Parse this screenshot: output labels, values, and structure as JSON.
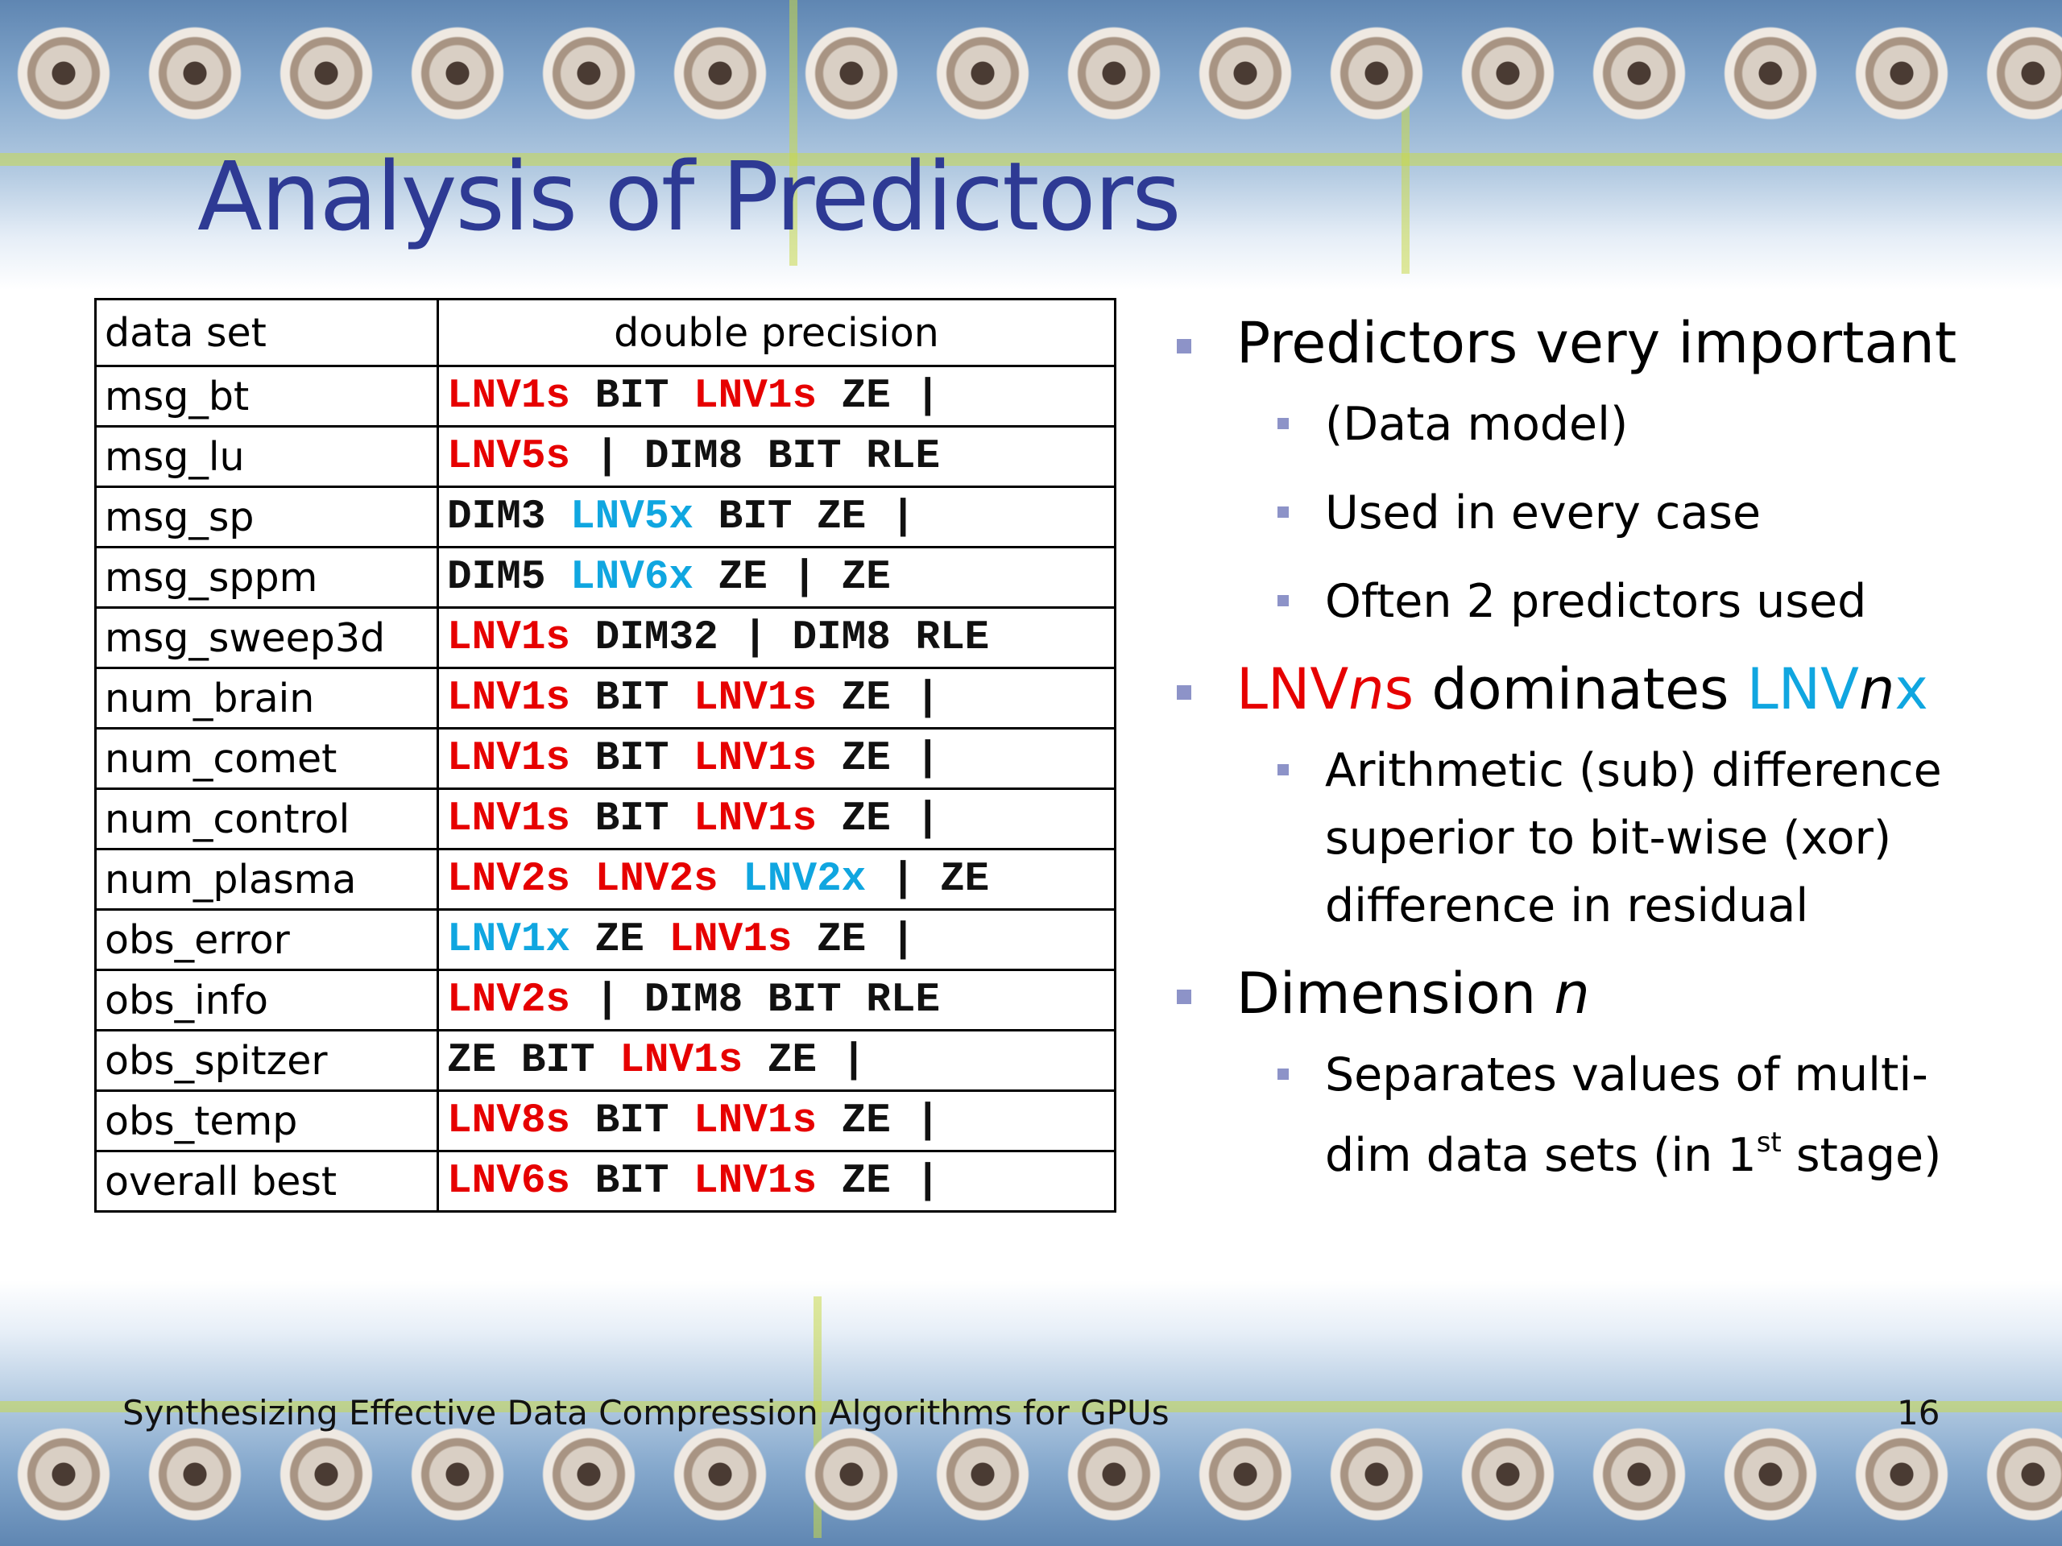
{
  "slide": {
    "title": "Analysis of Predictors",
    "footer": "Synthesizing Effective Data Compression Algorithms for GPUs",
    "page_number": "16"
  },
  "table": {
    "headers": [
      "data set",
      "double precision"
    ],
    "rows": [
      {
        "name": "msg_bt",
        "tokens": [
          {
            "t": "LNV1s",
            "c": "s"
          },
          {
            "t": "BIT",
            "c": "n"
          },
          {
            "t": "LNV1s",
            "c": "s"
          },
          {
            "t": "ZE",
            "c": "n"
          },
          {
            "t": "|",
            "c": "n"
          }
        ]
      },
      {
        "name": "msg_lu",
        "tokens": [
          {
            "t": "LNV5s",
            "c": "s"
          },
          {
            "t": "|",
            "c": "n"
          },
          {
            "t": "DIM8",
            "c": "n"
          },
          {
            "t": "BIT",
            "c": "n"
          },
          {
            "t": "RLE",
            "c": "n"
          }
        ]
      },
      {
        "name": "msg_sp",
        "tokens": [
          {
            "t": "DIM3",
            "c": "n"
          },
          {
            "t": "LNV5x",
            "c": "x"
          },
          {
            "t": "BIT",
            "c": "n"
          },
          {
            "t": "ZE",
            "c": "n"
          },
          {
            "t": "|",
            "c": "n"
          }
        ]
      },
      {
        "name": "msg_sppm",
        "tokens": [
          {
            "t": "DIM5",
            "c": "n"
          },
          {
            "t": "LNV6x",
            "c": "x"
          },
          {
            "t": "ZE",
            "c": "n"
          },
          {
            "t": "|",
            "c": "n"
          },
          {
            "t": "ZE",
            "c": "n"
          }
        ]
      },
      {
        "name": "msg_sweep3d",
        "tokens": [
          {
            "t": "LNV1s",
            "c": "s"
          },
          {
            "t": "DIM32",
            "c": "n"
          },
          {
            "t": "|",
            "c": "n"
          },
          {
            "t": "DIM8",
            "c": "n"
          },
          {
            "t": "RLE",
            "c": "n"
          }
        ]
      },
      {
        "name": "num_brain",
        "tokens": [
          {
            "t": "LNV1s",
            "c": "s"
          },
          {
            "t": "BIT",
            "c": "n"
          },
          {
            "t": "LNV1s",
            "c": "s"
          },
          {
            "t": "ZE",
            "c": "n"
          },
          {
            "t": "|",
            "c": "n"
          }
        ]
      },
      {
        "name": "num_comet",
        "tokens": [
          {
            "t": "LNV1s",
            "c": "s"
          },
          {
            "t": "BIT",
            "c": "n"
          },
          {
            "t": "LNV1s",
            "c": "s"
          },
          {
            "t": "ZE",
            "c": "n"
          },
          {
            "t": "|",
            "c": "n"
          }
        ]
      },
      {
        "name": "num_control",
        "tokens": [
          {
            "t": "LNV1s",
            "c": "s"
          },
          {
            "t": "BIT",
            "c": "n"
          },
          {
            "t": "LNV1s",
            "c": "s"
          },
          {
            "t": "ZE",
            "c": "n"
          },
          {
            "t": "|",
            "c": "n"
          }
        ]
      },
      {
        "name": "num_plasma",
        "tokens": [
          {
            "t": "LNV2s",
            "c": "s"
          },
          {
            "t": "LNV2s",
            "c": "s"
          },
          {
            "t": "LNV2x",
            "c": "x"
          },
          {
            "t": "|",
            "c": "n"
          },
          {
            "t": "ZE",
            "c": "n"
          }
        ]
      },
      {
        "name": "obs_error",
        "tokens": [
          {
            "t": "LNV1x",
            "c": "x"
          },
          {
            "t": "ZE",
            "c": "n"
          },
          {
            "t": "LNV1s",
            "c": "s"
          },
          {
            "t": "ZE",
            "c": "n"
          },
          {
            "t": "|",
            "c": "n"
          }
        ]
      },
      {
        "name": "obs_info",
        "tokens": [
          {
            "t": "LNV2s",
            "c": "s"
          },
          {
            "t": "|",
            "c": "n"
          },
          {
            "t": "DIM8",
            "c": "n"
          },
          {
            "t": "BIT",
            "c": "n"
          },
          {
            "t": "RLE",
            "c": "n"
          }
        ]
      },
      {
        "name": "obs_spitzer",
        "tokens": [
          {
            "t": "ZE",
            "c": "n"
          },
          {
            "t": "BIT",
            "c": "n"
          },
          {
            "t": "LNV1s",
            "c": "s"
          },
          {
            "t": "ZE",
            "c": "n"
          },
          {
            "t": "|",
            "c": "n"
          }
        ]
      },
      {
        "name": "obs_temp",
        "tokens": [
          {
            "t": "LNV8s",
            "c": "s"
          },
          {
            "t": "BIT",
            "c": "n"
          },
          {
            "t": "LNV1s",
            "c": "s"
          },
          {
            "t": "ZE",
            "c": "n"
          },
          {
            "t": "|",
            "c": "n"
          }
        ]
      },
      {
        "name": "overall best",
        "tokens": [
          {
            "t": "LNV6s",
            "c": "s"
          },
          {
            "t": "BIT",
            "c": "n"
          },
          {
            "t": "LNV1s",
            "c": "s"
          },
          {
            "t": "ZE",
            "c": "n"
          },
          {
            "t": "|",
            "c": "n"
          }
        ]
      }
    ]
  },
  "bullets": {
    "b1": "Predictors very important",
    "b1_sub1": "(Data model)",
    "b1_sub2": "Used in every case",
    "b1_sub3": "Often 2 predictors used",
    "b2_a": "LNV",
    "b2_b": "n",
    "b2_c": "s",
    "b2_d": " dominates ",
    "b2_e": "LNV",
    "b2_f": "n",
    "b2_g": "x",
    "b2_sub1": "Arithmetic (sub) difference superior to bit-wise (xor) difference in residual",
    "b3_a": "Dimension ",
    "b3_b": "n",
    "b3_sub1_a": "Separates values of multi-dim data sets (in 1",
    "b3_sub1_sup": "st",
    "b3_sub1_b": " stage)"
  },
  "colors": {
    "title": "#2e3a94",
    "s_predictor": "#e60000",
    "x_predictor": "#10a6e0",
    "bullet": "#8d93c8"
  }
}
